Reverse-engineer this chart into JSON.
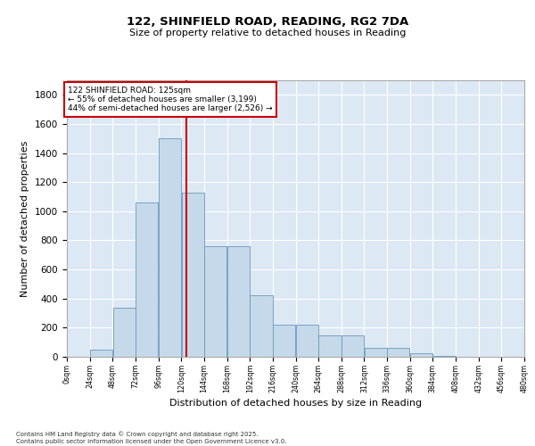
{
  "title_line1": "122, SHINFIELD ROAD, READING, RG2 7DA",
  "title_line2": "Size of property relative to detached houses in Reading",
  "xlabel": "Distribution of detached houses by size in Reading",
  "ylabel": "Number of detached properties",
  "bar_color": "#c6d9ea",
  "bar_edge_color": "#6699bb",
  "background_color": "#dde8f5",
  "grid_color": "#ffffff",
  "vline_color": "#cc0000",
  "annotation_line1": "122 SHINFIELD ROAD: 125sqm",
  "annotation_line2": "← 55% of detached houses are smaller (3,199)",
  "annotation_line3": "44% of semi-detached houses are larger (2,526) →",
  "annotation_box_color": "#ffffff",
  "annotation_box_edge": "#cc0000",
  "bins_left": [
    0,
    24,
    48,
    72,
    96,
    120,
    144,
    168,
    192,
    216,
    240,
    264,
    288,
    312,
    336,
    360,
    384,
    408,
    432,
    456
  ],
  "bin_width": 24,
  "bar_heights": [
    0,
    50,
    340,
    1060,
    1500,
    1130,
    760,
    760,
    420,
    220,
    220,
    150,
    150,
    60,
    60,
    25,
    5,
    0,
    0,
    0
  ],
  "ylim": [
    0,
    1900
  ],
  "yticks": [
    0,
    200,
    400,
    600,
    800,
    1000,
    1200,
    1400,
    1600,
    1800
  ],
  "xticks": [
    0,
    24,
    48,
    72,
    96,
    120,
    144,
    168,
    192,
    216,
    240,
    264,
    288,
    312,
    336,
    360,
    384,
    408,
    432,
    456,
    480
  ],
  "property_size": 125,
  "footer_line1": "Contains HM Land Registry data © Crown copyright and database right 2025.",
  "footer_line2": "Contains public sector information licensed under the Open Government Licence v3.0."
}
